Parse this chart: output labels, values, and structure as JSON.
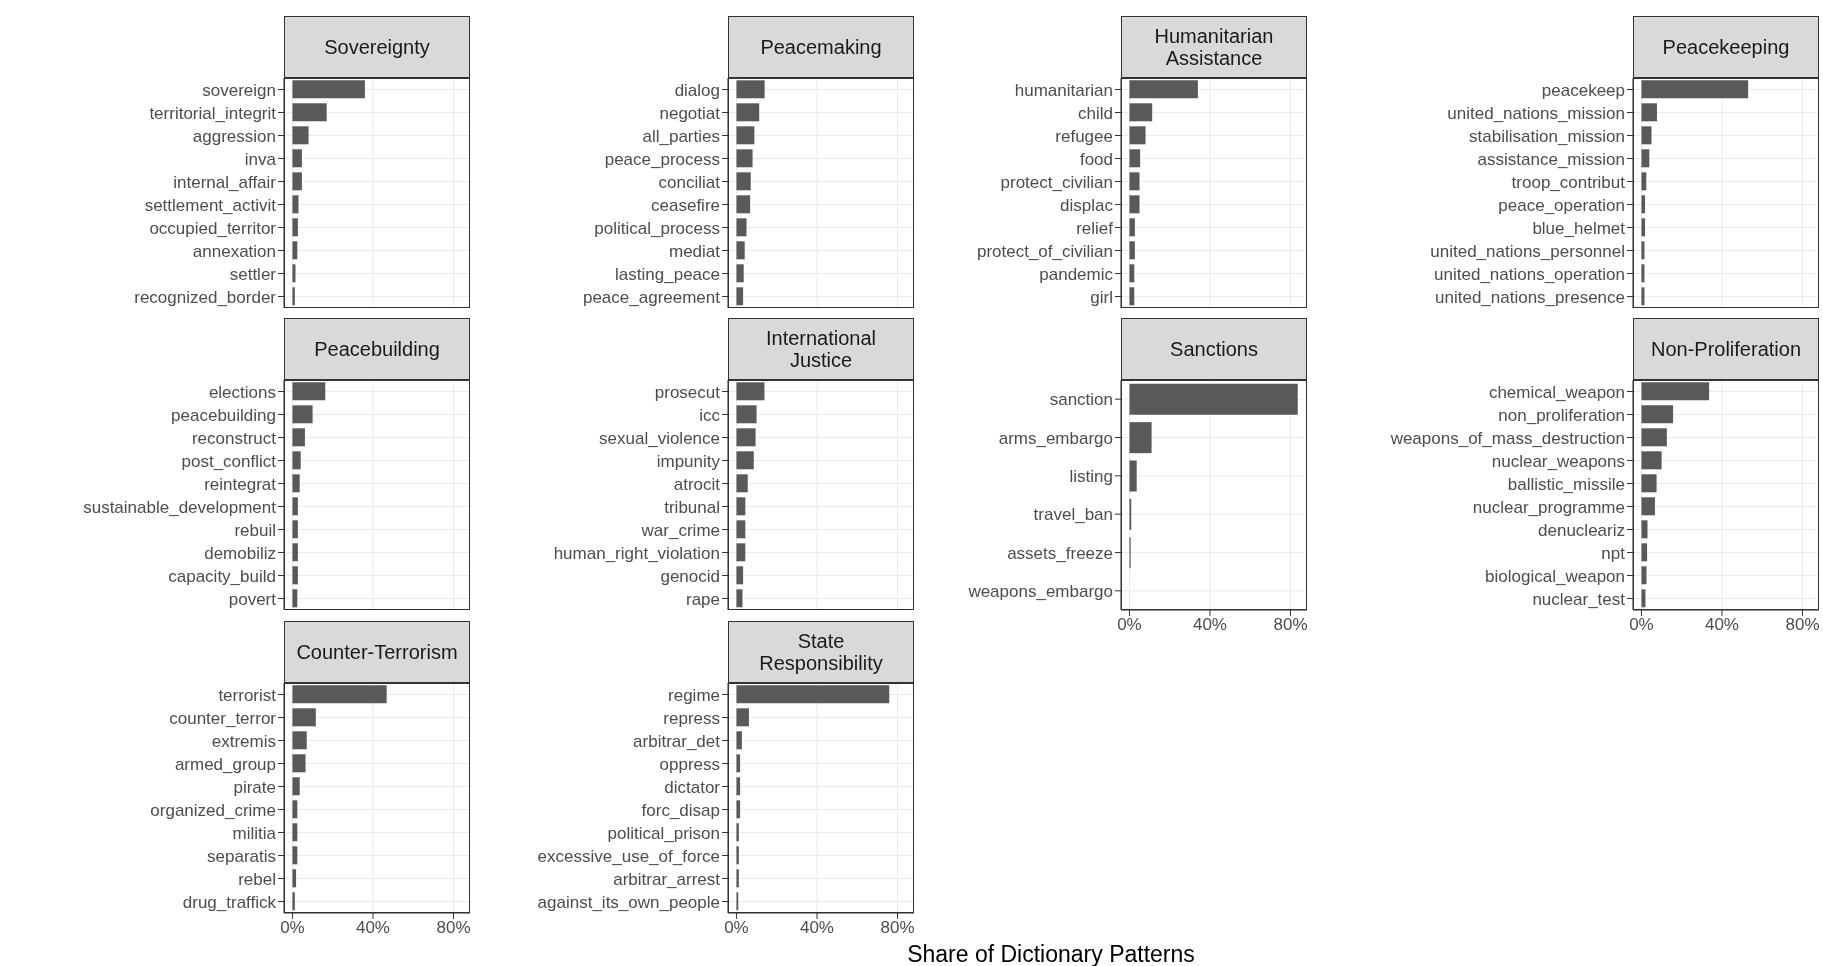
{
  "chart_data": [
    {
      "type": "bar",
      "orientation": "horizontal",
      "title": "Sovereignty",
      "categories": [
        "sovereign",
        "territorial_integrit",
        "aggression",
        "inva",
        "internal_affair",
        "settlement_activit",
        "occupied_territor",
        "annexation",
        "settler",
        "recognized_border"
      ],
      "values": [
        36,
        17,
        8,
        4.7,
        4.7,
        3,
        2.7,
        2.4,
        1.5,
        1.2
      ],
      "color": "#595959",
      "xlim": [
        -4.2,
        88.2
      ],
      "xticks": [
        0,
        40,
        80
      ],
      "grid": true,
      "tick_labels": "y"
    },
    {
      "type": "bar",
      "orientation": "horizontal",
      "title": "Peacemaking",
      "categories": [
        "dialog",
        "negotiat",
        "all_parties",
        "peace_process",
        "conciliat",
        "ceasefire",
        "political_process",
        "mediat",
        "lasting_peace",
        "peace_agreement"
      ],
      "values": [
        14,
        11.3,
        8.9,
        8,
        7.1,
        6.8,
        5,
        4.1,
        3.6,
        3.3
      ],
      "color": "#595959",
      "xlim": [
        -4.2,
        88.2
      ],
      "xticks": [
        0,
        40,
        80
      ],
      "grid": true,
      "tick_labels": "y"
    },
    {
      "type": "bar",
      "orientation": "horizontal",
      "title": "Humanitarian Assistance",
      "categories": [
        "humanitarian",
        "child",
        "refugee",
        "food",
        "protect_civilian",
        "displac",
        "relief",
        "protect_of_civilian",
        "pandemic",
        "girl"
      ],
      "values": [
        34,
        11.3,
        8,
        5.3,
        5,
        5,
        2.7,
        2.7,
        2.4,
        2.4
      ],
      "color": "#595959",
      "xlim": [
        -4.2,
        88.2
      ],
      "xticks": [
        0,
        40,
        80
      ],
      "grid": true,
      "tick_labels": "y"
    },
    {
      "type": "bar",
      "orientation": "horizontal",
      "title": "Peacekeeping",
      "categories": [
        "peacekeep",
        "united_nations_mission",
        "stabilisation_mission",
        "assistance_mission",
        "troop_contribut",
        "peace_operation",
        "blue_helmet",
        "united_nations_personnel",
        "united_nations_operation",
        "united_nations_presence"
      ],
      "values": [
        53,
        7.7,
        5,
        3.9,
        2.4,
        1.8,
        1.8,
        1.5,
        1.5,
        1.5
      ],
      "color": "#595959",
      "xlim": [
        -4.2,
        88.2
      ],
      "xticks": [
        0,
        40,
        80
      ],
      "grid": true,
      "tick_labels": "y"
    },
    {
      "type": "bar",
      "orientation": "horizontal",
      "title": "Peacebuilding",
      "categories": [
        "elections",
        "peacebuilding",
        "reconstruct",
        "post_conflict",
        "reintegrat",
        "sustainable_development",
        "rebuil",
        "demobiliz",
        "capacity_build",
        "povert"
      ],
      "values": [
        16.3,
        10,
        6.2,
        4.1,
        3.6,
        2.7,
        2.7,
        2.7,
        2.7,
        2.4
      ],
      "color": "#595959",
      "xlim": [
        -4.2,
        88.2
      ],
      "xticks": [
        0,
        40,
        80
      ],
      "grid": true,
      "tick_labels": "y"
    },
    {
      "type": "bar",
      "orientation": "horizontal",
      "title": "International Justice",
      "categories": [
        "prosecut",
        "icc",
        "sexual_violence",
        "impunity",
        "atrocit",
        "tribunal",
        "war_crime",
        "human_right_violation",
        "genocid",
        "rape"
      ],
      "values": [
        13.9,
        10,
        9.5,
        8.6,
        5.6,
        4.4,
        4.4,
        4.4,
        3.3,
        3
      ],
      "color": "#595959",
      "xlim": [
        -4.2,
        88.2
      ],
      "xticks": [
        0,
        40,
        80
      ],
      "grid": true,
      "tick_labels": "y"
    },
    {
      "type": "bar",
      "orientation": "horizontal",
      "title": "Sanctions",
      "categories": [
        "sanction",
        "arms_embargo",
        "listing",
        "travel_ban",
        "assets_freeze",
        "weapons_embargo"
      ],
      "values": [
        83.6,
        11,
        3.6,
        0.9,
        0.6,
        0
      ],
      "color": "#595959",
      "xlim": [
        -4.2,
        88.2
      ],
      "xticks": [
        {
          "value": 0,
          "label": "0%"
        },
        {
          "value": 40,
          "label": "40%"
        },
        {
          "value": 80,
          "label": "80%"
        }
      ],
      "grid": true
    },
    {
      "type": "bar",
      "orientation": "horizontal",
      "title": "Non-Proliferation",
      "categories": [
        "chemical_weapon",
        "non_proliferation",
        "weapons_of_mass_destruction",
        "nuclear_weapons",
        "ballistic_missile",
        "nuclear_programme",
        "denucleariz",
        "npt",
        "biological_weapon",
        "nuclear_test"
      ],
      "values": [
        33.6,
        15.7,
        12.6,
        10,
        7.5,
        6.7,
        3,
        2.8,
        2.5,
        2
      ],
      "color": "#595959",
      "xlim": [
        -4.2,
        88.2
      ],
      "xticks": [
        {
          "value": 0,
          "label": "0%"
        },
        {
          "value": 40,
          "label": "40%"
        },
        {
          "value": 80,
          "label": "80%"
        }
      ],
      "grid": true
    },
    {
      "type": "bar",
      "orientation": "horizontal",
      "title": "Counter-Terrorism",
      "categories": [
        "terrorist",
        "counter_terror",
        "extremis",
        "armed_group",
        "pirate",
        "organized_crime",
        "militia",
        "separatis",
        "rebel",
        "drug_traffick"
      ],
      "values": [
        46.8,
        11.6,
        7.1,
        6.5,
        3.6,
        2.4,
        2.4,
        2.4,
        1.8,
        1.2
      ],
      "color": "#595959",
      "xlim": [
        -4.2,
        88.2
      ],
      "xticks": [
        {
          "value": 0,
          "label": "0%"
        },
        {
          "value": 40,
          "label": "40%"
        },
        {
          "value": 80,
          "label": "80%"
        }
      ],
      "grid": true
    },
    {
      "type": "bar",
      "orientation": "horizontal",
      "title": "State Responsibility",
      "xlabel": "Share of Dictionary Patterns",
      "categories": [
        "regime",
        "repress",
        "arbitrar_det",
        "oppress",
        "dictator",
        "forc_disap",
        "political_prison",
        "excessive_use_of_force",
        "arbitrar_arrest",
        "against_its_own_people"
      ],
      "values": [
        75.9,
        6.2,
        2.7,
        1.8,
        1.8,
        1.8,
        1.2,
        1.2,
        1.2,
        0.9
      ],
      "color": "#595959",
      "xlim": [
        -4.2,
        88.2
      ],
      "xticks": [
        {
          "value": 0,
          "label": "0%"
        },
        {
          "value": 40,
          "label": "40%"
        },
        {
          "value": 80,
          "label": "80%"
        }
      ],
      "grid": true
    }
  ]
}
